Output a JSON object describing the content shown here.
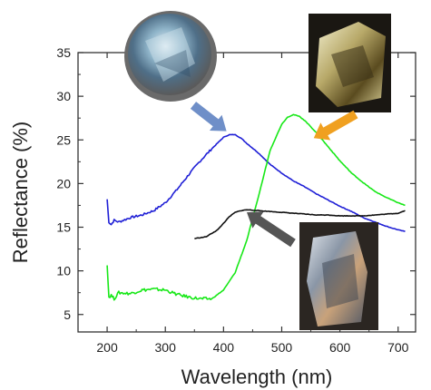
{
  "chart_data": {
    "type": "line",
    "xlabel": "Wavelength (nm)",
    "ylabel": "Reflectance (%)",
    "xlim": [
      150,
      730
    ],
    "ylim": [
      3,
      35
    ],
    "xticks": [
      200,
      300,
      400,
      500,
      600,
      700
    ],
    "yticks": [
      5,
      10,
      15,
      20,
      25,
      30,
      35
    ],
    "grid": false,
    "legend": "none",
    "series": [
      {
        "color": "#1f1fd6",
        "x": [
          200,
          203,
          207,
          212,
          220,
          240,
          260,
          280,
          300,
          320,
          340,
          360,
          380,
          400,
          410,
          420,
          430,
          440,
          460,
          480,
          500,
          520,
          540,
          560,
          580,
          600,
          620,
          640,
          660,
          680,
          700,
          712
        ],
        "y": [
          18.2,
          15.6,
          15.3,
          15.8,
          15.6,
          16.1,
          16.4,
          16.9,
          17.8,
          19.3,
          21.0,
          22.6,
          24.0,
          25.3,
          25.6,
          25.6,
          25.2,
          24.6,
          23.5,
          22.2,
          21.2,
          20.3,
          19.6,
          18.8,
          18.1,
          17.4,
          16.8,
          16.1,
          15.6,
          15.1,
          14.7,
          14.5
        ]
      },
      {
        "color": "#17e817",
        "x": [
          200,
          203,
          207,
          212,
          220,
          240,
          260,
          280,
          300,
          320,
          340,
          360,
          380,
          400,
          420,
          440,
          460,
          480,
          500,
          510,
          520,
          530,
          540,
          560,
          580,
          600,
          620,
          640,
          660,
          680,
          700,
          712
        ],
        "y": [
          10.8,
          7.0,
          7.2,
          6.8,
          7.5,
          7.4,
          7.8,
          7.9,
          7.8,
          7.3,
          7.0,
          6.8,
          6.8,
          7.8,
          9.8,
          13.5,
          18.5,
          23.8,
          26.8,
          27.6,
          27.9,
          27.7,
          27.2,
          25.8,
          24.2,
          22.6,
          21.2,
          20.1,
          19.1,
          18.4,
          17.8,
          17.5
        ]
      },
      {
        "color": "#111111",
        "x": [
          350,
          370,
          390,
          410,
          420,
          430,
          440,
          460,
          480,
          500,
          520,
          540,
          560,
          580,
          600,
          620,
          640,
          660,
          680,
          700,
          712
        ],
        "y": [
          13.7,
          13.9,
          14.7,
          16.2,
          16.7,
          16.9,
          17.0,
          16.9,
          16.8,
          16.7,
          16.6,
          16.5,
          16.4,
          16.4,
          16.3,
          16.3,
          16.3,
          16.4,
          16.5,
          16.6,
          16.9
        ]
      }
    ],
    "annotations": [
      {
        "kind": "arrow",
        "color": "#6f8fc8",
        "x": 405,
        "y": 26.0
      },
      {
        "kind": "arrow",
        "color": "#f0a020",
        "x": 555,
        "y": 25.2
      },
      {
        "kind": "arrow",
        "color": "#555555",
        "x": 440,
        "y": 16.7
      }
    ]
  }
}
